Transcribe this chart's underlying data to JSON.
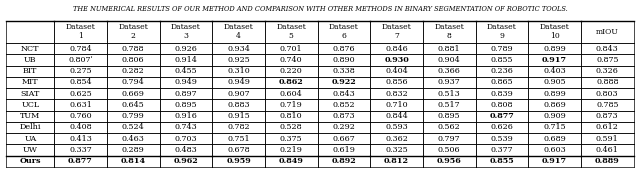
{
  "title": "THE NUMERICAL RESULTS OF OUR METHOD AND COMPARISON WITH OTHER METHODS IN BINARY SEGMENTATION OF ROBOTIC TOOLS.",
  "col_headers": [
    "",
    "Dataset\n1",
    "Dataset\n2",
    "Dataset\n3",
    "Dataset\n4",
    "Dataset\n5",
    "Dataset\n6",
    "Dataset\n7",
    "Dataset\n8",
    "Dataset\n9",
    "Dataset\n10",
    "mIOU"
  ],
  "rows": [
    [
      "NCT",
      "0.784",
      "0.788",
      "0.926",
      "0.934",
      "0.701",
      "0.876",
      "0.846",
      "0.881",
      "0.789",
      "0.899",
      "0.843"
    ],
    [
      "UB",
      "0.807ʹ",
      "0.806",
      "0.914",
      "0.925",
      "0.740",
      "0.890",
      "0.930",
      "0.904",
      "0.855",
      "0.917",
      "0.875"
    ],
    [
      "BIT",
      "0.275",
      "0.282",
      "0.455",
      "0.310",
      "0.220",
      "0.338",
      "0.404",
      "0.366",
      "0.236",
      "0.403",
      "0.326"
    ],
    [
      "MIT",
      "0.854",
      "0.794",
      "0.949",
      "0.949",
      "0.862",
      "0.922",
      "0.856",
      "0.937",
      "0.865",
      "0.905",
      "0.888"
    ],
    [
      "SIAT",
      "0.625",
      "0.669",
      "0.897",
      "0.907",
      "0.604",
      "0.843",
      "0.832",
      "0.513",
      "0.839",
      "0.899",
      "0.803"
    ],
    [
      "UCL",
      "0.631",
      "0.645",
      "0.895",
      "0.883",
      "0.719",
      "0.852",
      "0.710",
      "0.517",
      "0.808",
      "0.869",
      "0.785"
    ],
    [
      "TUM",
      "0.760",
      "0.799",
      "0.916",
      "0.915",
      "0.810",
      "0.873",
      "0.844",
      "0.895",
      "0.877",
      "0.909",
      "0.873"
    ],
    [
      "Delhi",
      "0.408",
      "0.524",
      "0.743",
      "0.782",
      "0.528",
      "0.292",
      "0.593",
      "0.562",
      "0.626",
      "0.715",
      "0.612"
    ],
    [
      "UA",
      "0.413",
      "0.463",
      "0.703",
      "0.751",
      "0.375",
      "0.667",
      "0.362",
      "0.797",
      "0.539",
      "0.689",
      "0.591"
    ],
    [
      "UW",
      "0.337",
      "0.289",
      "0.483",
      "0.678",
      "0.219",
      "0.619",
      "0.325",
      "0.506",
      "0.377",
      "0.603",
      "0.461"
    ],
    [
      "Ours",
      "0.877",
      "0.814",
      "0.962",
      "0.959",
      "0.849",
      "0.892",
      "0.812",
      "0.956",
      "0.855",
      "0.917",
      "0.889"
    ]
  ],
  "bold_data_cells": [
    [
      1,
      6
    ],
    [
      1,
      9
    ],
    [
      3,
      4
    ],
    [
      3,
      5
    ],
    [
      6,
      8
    ]
  ],
  "ours_row_index": 10,
  "ours_bold_cols": [
    0,
    1,
    2,
    3,
    4,
    5,
    6,
    7,
    8,
    9,
    10
  ],
  "title_fontsize": 4.8,
  "data_fontsize": 5.8,
  "header_fontsize": 5.5
}
